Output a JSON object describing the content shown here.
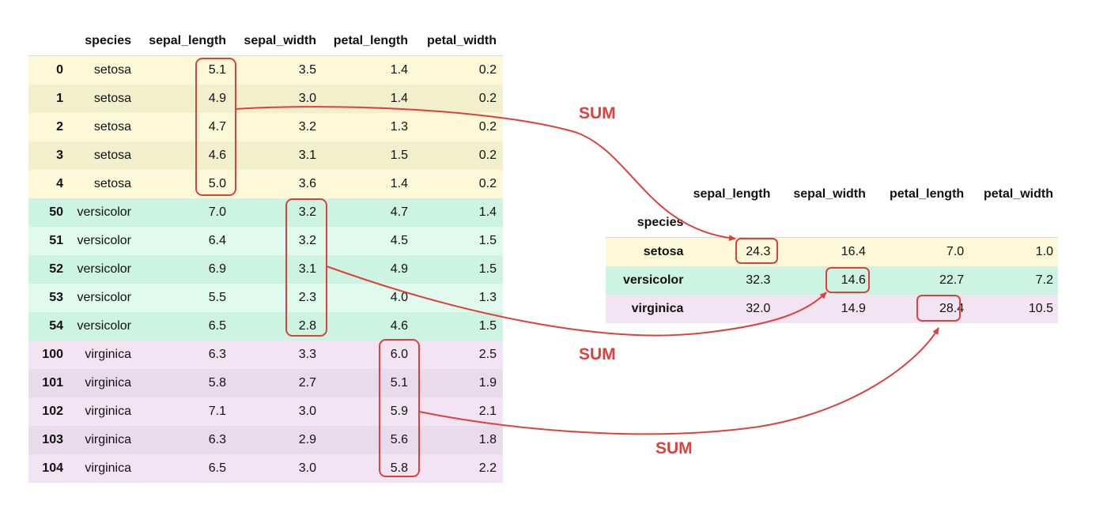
{
  "colors": {
    "setosa_a": "#fdf8d8",
    "setosa_b": "#f2efcd",
    "versicolor_a": "#cdf3e2",
    "versicolor_b": "#e0fbee",
    "virginica_a": "#f3e4f4",
    "virginica_b": "#e9dbeb",
    "accent": "#e0403c"
  },
  "left_table": {
    "columns": [
      "",
      "species",
      "sepal_length",
      "sepal_width",
      "petal_length",
      "petal_width"
    ],
    "rows": [
      {
        "index": "0",
        "species": "setosa",
        "sepal_length": "5.1",
        "sepal_width": "3.5",
        "petal_length": "1.4",
        "petal_width": "0.2",
        "group": "setosa"
      },
      {
        "index": "1",
        "species": "setosa",
        "sepal_length": "4.9",
        "sepal_width": "3.0",
        "petal_length": "1.4",
        "petal_width": "0.2",
        "group": "setosa"
      },
      {
        "index": "2",
        "species": "setosa",
        "sepal_length": "4.7",
        "sepal_width": "3.2",
        "petal_length": "1.3",
        "petal_width": "0.2",
        "group": "setosa"
      },
      {
        "index": "3",
        "species": "setosa",
        "sepal_length": "4.6",
        "sepal_width": "3.1",
        "petal_length": "1.5",
        "petal_width": "0.2",
        "group": "setosa"
      },
      {
        "index": "4",
        "species": "setosa",
        "sepal_length": "5.0",
        "sepal_width": "3.6",
        "petal_length": "1.4",
        "petal_width": "0.2",
        "group": "setosa"
      },
      {
        "index": "50",
        "species": "versicolor",
        "sepal_length": "7.0",
        "sepal_width": "3.2",
        "petal_length": "4.7",
        "petal_width": "1.4",
        "group": "versicolor"
      },
      {
        "index": "51",
        "species": "versicolor",
        "sepal_length": "6.4",
        "sepal_width": "3.2",
        "petal_length": "4.5",
        "petal_width": "1.5",
        "group": "versicolor"
      },
      {
        "index": "52",
        "species": "versicolor",
        "sepal_length": "6.9",
        "sepal_width": "3.1",
        "petal_length": "4.9",
        "petal_width": "1.5",
        "group": "versicolor"
      },
      {
        "index": "53",
        "species": "versicolor",
        "sepal_length": "5.5",
        "sepal_width": "2.3",
        "petal_length": "4.0",
        "petal_width": "1.3",
        "group": "versicolor"
      },
      {
        "index": "54",
        "species": "versicolor",
        "sepal_length": "6.5",
        "sepal_width": "2.8",
        "petal_length": "4.6",
        "petal_width": "1.5",
        "group": "versicolor"
      },
      {
        "index": "100",
        "species": "virginica",
        "sepal_length": "6.3",
        "sepal_width": "3.3",
        "petal_length": "6.0",
        "petal_width": "2.5",
        "group": "virginica"
      },
      {
        "index": "101",
        "species": "virginica",
        "sepal_length": "5.8",
        "sepal_width": "2.7",
        "petal_length": "5.1",
        "petal_width": "1.9",
        "group": "virginica"
      },
      {
        "index": "102",
        "species": "virginica",
        "sepal_length": "7.1",
        "sepal_width": "3.0",
        "petal_length": "5.9",
        "petal_width": "2.1",
        "group": "virginica"
      },
      {
        "index": "103",
        "species": "virginica",
        "sepal_length": "6.3",
        "sepal_width": "2.9",
        "petal_length": "5.6",
        "petal_width": "1.8",
        "group": "virginica"
      },
      {
        "index": "104",
        "species": "virginica",
        "sepal_length": "6.5",
        "sepal_width": "3.0",
        "petal_length": "5.8",
        "petal_width": "2.2",
        "group": "virginica"
      }
    ]
  },
  "right_table": {
    "columns": [
      "sepal_length",
      "sepal_width",
      "petal_length",
      "petal_width"
    ],
    "index_name": "species",
    "rows": [
      {
        "species": "setosa",
        "sepal_length": "24.3",
        "sepal_width": "16.4",
        "petal_length": "7.0",
        "petal_width": "1.0",
        "group": "setosa"
      },
      {
        "species": "versicolor",
        "sepal_length": "32.3",
        "sepal_width": "14.6",
        "petal_length": "22.7",
        "petal_width": "7.2",
        "group": "versicolor"
      },
      {
        "species": "virginica",
        "sepal_length": "32.0",
        "sepal_width": "14.9",
        "petal_length": "28.4",
        "petal_width": "10.5",
        "group": "virginica"
      }
    ]
  },
  "annotations": {
    "sum_label_1": "SUM",
    "sum_label_2": "SUM",
    "sum_label_3": "SUM"
  }
}
